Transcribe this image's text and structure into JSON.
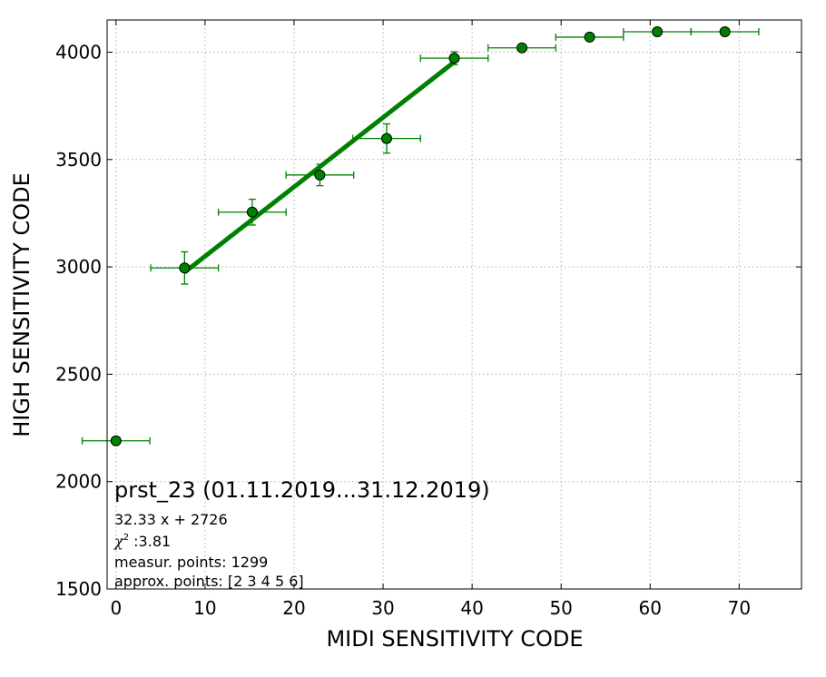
{
  "chart_data": {
    "type": "scatter",
    "xlabel": "MIDI SENSITIVITY CODE",
    "ylabel": "HIGH SENSITIVITY CODE",
    "xlim": [
      -1,
      77
    ],
    "ylim": [
      1500,
      4150
    ],
    "xticks": [
      0,
      10,
      20,
      30,
      40,
      50,
      60,
      70
    ],
    "yticks": [
      1500,
      2000,
      2500,
      3000,
      3500,
      4000
    ],
    "grid": true,
    "colors": {
      "marker": "#008000",
      "fit_line": "#008000",
      "errorbar": "#008000"
    },
    "points": [
      {
        "x": 0.0,
        "y": 2190,
        "xerr": 3.8,
        "yerr": 0
      },
      {
        "x": 7.7,
        "y": 2995,
        "xerr": 3.8,
        "yerr": 75
      },
      {
        "x": 15.3,
        "y": 3255,
        "xerr": 3.8,
        "yerr": 60
      },
      {
        "x": 22.9,
        "y": 3428,
        "xerr": 3.8,
        "yerr": 50
      },
      {
        "x": 30.4,
        "y": 3598,
        "xerr": 3.8,
        "yerr": 68
      },
      {
        "x": 38.0,
        "y": 3972,
        "xerr": 3.8,
        "yerr": 30
      },
      {
        "x": 45.6,
        "y": 4020,
        "xerr": 3.8,
        "yerr": 0
      },
      {
        "x": 53.2,
        "y": 4070,
        "xerr": 3.8,
        "yerr": 0
      },
      {
        "x": 60.8,
        "y": 4095,
        "xerr": 3.8,
        "yerr": 0
      },
      {
        "x": 68.4,
        "y": 4095,
        "xerr": 3.8,
        "yerr": 0
      }
    ],
    "fit": {
      "slope": 32.33,
      "intercept": 2726,
      "x_range": [
        7.7,
        38.0
      ]
    },
    "annotations": {
      "title": "prst_23 (01.11.2019...31.12.2019)",
      "equation": "32.33 x + 2726",
      "chi_symbol": "χ",
      "chi_sup": "2",
      "chi_value": " :3.81",
      "measur_points": "measur. points: 1299",
      "approx_points": "approx. points: [2 3 4 5 6]"
    }
  }
}
